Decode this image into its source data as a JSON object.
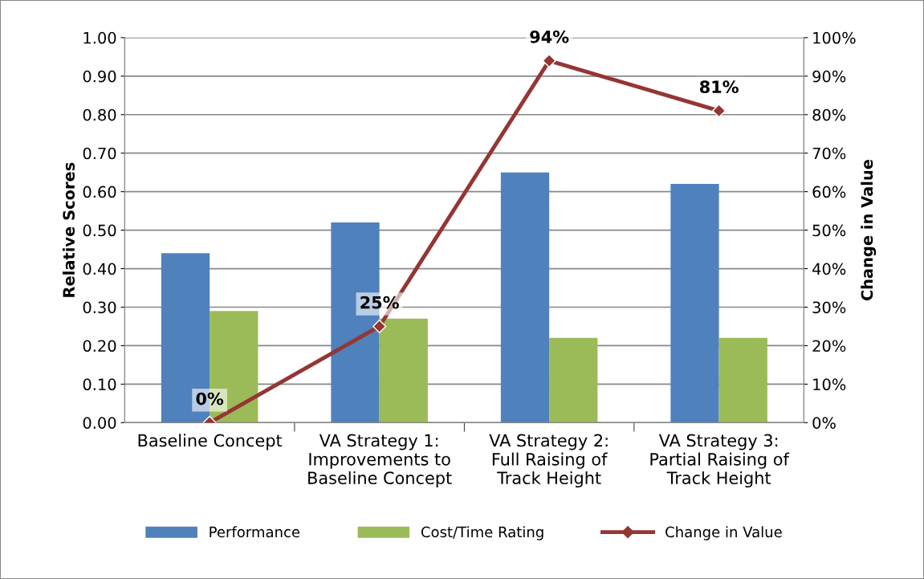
{
  "chart_data": {
    "type": "bar",
    "categories": [
      "Baseline Concept",
      "VA Strategy 1:\nImprovements to\nBaseline Concept",
      "VA Strategy 2:\nFull Raising of\nTrack Height",
      "VA Strategy 3:\nPartial Raising of\nTrack Height"
    ],
    "series": [
      {
        "name": "Performance",
        "color": "#4f81bd",
        "values": [
          0.44,
          0.52,
          0.65,
          0.62
        ]
      },
      {
        "name": "Cost/Time Rating",
        "color": "#9bbb59",
        "values": [
          0.29,
          0.27,
          0.22,
          0.22
        ]
      },
      {
        "name": "Change in Value",
        "type": "line",
        "axis": "y2",
        "color": "#943634",
        "marker": "diamond",
        "values": [
          0,
          25,
          94,
          81
        ],
        "value_labels": [
          "0%",
          "25%",
          "94%",
          "81%"
        ]
      }
    ],
    "ylabel": "Relative Scores",
    "y2label": "Change in Value",
    "ylim": [
      0,
      1
    ],
    "yticks": [
      {
        "value": 0,
        "label": "0.00"
      },
      {
        "value": 0.1,
        "label": "0.10"
      },
      {
        "value": 0.2,
        "label": "0.20"
      },
      {
        "value": 0.3,
        "label": "0.30"
      },
      {
        "value": 0.4,
        "label": "0.40"
      },
      {
        "value": 0.5,
        "label": "0.50"
      },
      {
        "value": 0.6,
        "label": "0.60"
      },
      {
        "value": 0.7,
        "label": "0.70"
      },
      {
        "value": 0.8,
        "label": "0.80"
      },
      {
        "value": 0.9,
        "label": "0.90"
      },
      {
        "value": 1,
        "label": "1.00"
      }
    ],
    "y2lim": [
      0,
      100
    ],
    "y2ticks": [
      {
        "value": 0,
        "label": "0%"
      },
      {
        "value": 10,
        "label": "10%"
      },
      {
        "value": 20,
        "label": "20%"
      },
      {
        "value": 30,
        "label": "30%"
      },
      {
        "value": 40,
        "label": "40%"
      },
      {
        "value": 50,
        "label": "50%"
      },
      {
        "value": 60,
        "label": "60%"
      },
      {
        "value": 70,
        "label": "70%"
      },
      {
        "value": 80,
        "label": "80%"
      },
      {
        "value": 90,
        "label": "90%"
      },
      {
        "value": 100,
        "label": "100%"
      }
    ],
    "grid": "y",
    "legend": "bottom"
  }
}
